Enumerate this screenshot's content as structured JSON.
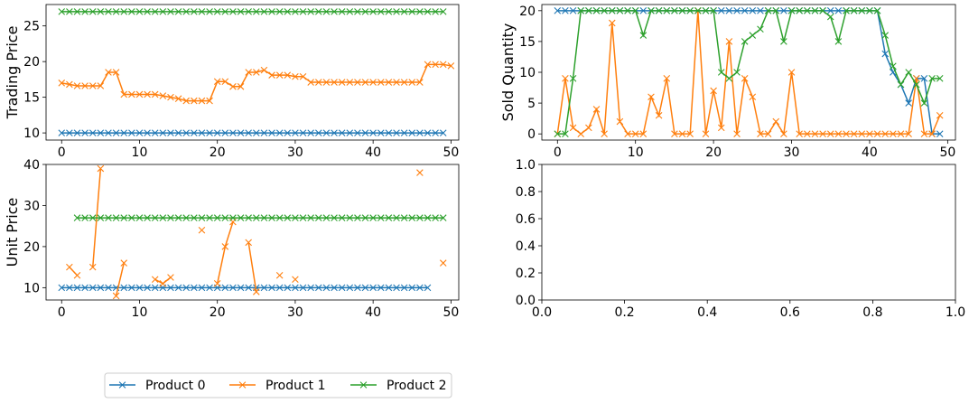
{
  "colors": {
    "Product 0": "#1f77b4",
    "Product 1": "#ff7f0e",
    "Product 2": "#2ca02c"
  },
  "legend": {
    "placement": "bottom-left",
    "entries": [
      "Product 0",
      "Product 1",
      "Product 2"
    ]
  },
  "chart_data": [
    {
      "id": "trading",
      "type": "line",
      "marker": "x",
      "ylabel": "Trading Price",
      "xlim": [
        -2,
        51
      ],
      "ylim": [
        9,
        28
      ],
      "xticks": [
        0,
        10,
        20,
        30,
        40,
        50
      ],
      "yticks": [
        10,
        15,
        20,
        25
      ],
      "series": [
        {
          "name": "Product 0",
          "x_start": 0,
          "values": [
            10,
            10,
            10,
            10,
            10,
            10,
            10,
            10,
            10,
            10,
            10,
            10,
            10,
            10,
            10,
            10,
            10,
            10,
            10,
            10,
            10,
            10,
            10,
            10,
            10,
            10,
            10,
            10,
            10,
            10,
            10,
            10,
            10,
            10,
            10,
            10,
            10,
            10,
            10,
            10,
            10,
            10,
            10,
            10,
            10,
            10,
            10,
            10,
            10,
            10
          ]
        },
        {
          "name": "Product 1",
          "x_start": 0,
          "values": [
            17,
            16.8,
            16.6,
            16.6,
            16.6,
            16.6,
            18.5,
            18.5,
            15.4,
            15.4,
            15.4,
            15.4,
            15.4,
            15.2,
            15,
            14.8,
            14.5,
            14.5,
            14.5,
            14.5,
            17.2,
            17.2,
            16.5,
            16.5,
            18.5,
            18.5,
            18.8,
            18.1,
            18.1,
            18.1,
            17.9,
            17.9,
            17.1,
            17.1,
            17.1,
            17.1,
            17.1,
            17.1,
            17.1,
            17.1,
            17.1,
            17.1,
            17.1,
            17.1,
            17.1,
            17.1,
            17.1,
            19.6,
            19.6,
            19.6,
            19.4
          ]
        },
        {
          "name": "Product 2",
          "x_start": 0,
          "values": [
            27,
            27,
            27,
            27,
            27,
            27,
            27,
            27,
            27,
            27,
            27,
            27,
            27,
            27,
            27,
            27,
            27,
            27,
            27,
            27,
            27,
            27,
            27,
            27,
            27,
            27,
            27,
            27,
            27,
            27,
            27,
            27,
            27,
            27,
            27,
            27,
            27,
            27,
            27,
            27,
            27,
            27,
            27,
            27,
            27,
            27,
            27,
            27,
            27,
            27
          ]
        }
      ]
    },
    {
      "id": "sold",
      "type": "line",
      "marker": "x",
      "ylabel": "Sold Quantity",
      "xlim": [
        -2,
        51
      ],
      "ylim": [
        -1,
        21
      ],
      "xticks": [
        0,
        10,
        20,
        30,
        40,
        50
      ],
      "yticks": [
        0,
        5,
        10,
        15,
        20
      ],
      "series": [
        {
          "name": "Product 0",
          "x_start": 0,
          "values": [
            20,
            20,
            20,
            20,
            20,
            20,
            20,
            20,
            20,
            20,
            20,
            20,
            20,
            20,
            20,
            20,
            20,
            20,
            20,
            20,
            20,
            20,
            20,
            20,
            20,
            20,
            20,
            20,
            20,
            20,
            20,
            20,
            20,
            20,
            20,
            20,
            20,
            20,
            20,
            20,
            20,
            20,
            13,
            10,
            8,
            5,
            9,
            9,
            0,
            0
          ]
        },
        {
          "name": "Product 1",
          "x_start": 0,
          "values": [
            0,
            9,
            1,
            0,
            1,
            4,
            0,
            18,
            2,
            0,
            0,
            0,
            6,
            3,
            9,
            0,
            0,
            0,
            20,
            0,
            7,
            1,
            15,
            0,
            9,
            6,
            0,
            0,
            2,
            0,
            10,
            0,
            0,
            0,
            0,
            0,
            0,
            0,
            0,
            0,
            0,
            0,
            0,
            0,
            0,
            0,
            9,
            0,
            0,
            3
          ]
        },
        {
          "name": "Product 2",
          "x_start": 0,
          "values": [
            0,
            0,
            9,
            20,
            20,
            20,
            20,
            20,
            20,
            20,
            20,
            16,
            20,
            20,
            20,
            20,
            20,
            20,
            20,
            20,
            20,
            10,
            9,
            10,
            15,
            16,
            17,
            20,
            20,
            15,
            20,
            20,
            20,
            20,
            20,
            19,
            15,
            20,
            20,
            20,
            20,
            20,
            16,
            11,
            8,
            10,
            8,
            5,
            9,
            9
          ]
        }
      ]
    },
    {
      "id": "unit",
      "type": "line",
      "marker": "x",
      "ylabel": "Unit Price",
      "xlim": [
        -2,
        51
      ],
      "ylim": [
        7,
        40
      ],
      "xticks": [
        0,
        10,
        20,
        30,
        40,
        50
      ],
      "yticks": [
        10,
        20,
        30,
        40
      ],
      "series": [
        {
          "name": "Product 0",
          "x_start": 0,
          "values": [
            10,
            10,
            10,
            10,
            10,
            10,
            10,
            10,
            10,
            10,
            10,
            10,
            10,
            10,
            10,
            10,
            10,
            10,
            10,
            10,
            10,
            10,
            10,
            10,
            10,
            10,
            10,
            10,
            10,
            10,
            10,
            10,
            10,
            10,
            10,
            10,
            10,
            10,
            10,
            10,
            10,
            10,
            10,
            10,
            10,
            10,
            10,
            10
          ]
        },
        {
          "name": "Product 1",
          "x_start": 0,
          "values": [
            null,
            15,
            13,
            null,
            15,
            39,
            null,
            8,
            16,
            null,
            null,
            null,
            12,
            11,
            12.5,
            null,
            null,
            null,
            24,
            null,
            11,
            20,
            26,
            null,
            21,
            9,
            null,
            null,
            13,
            null,
            12,
            null,
            null,
            null,
            null,
            null,
            null,
            null,
            null,
            null,
            null,
            null,
            null,
            null,
            null,
            null,
            38,
            null,
            null,
            16
          ]
        },
        {
          "name": "Product 2",
          "x_start": 2,
          "values": [
            27,
            27,
            27,
            27,
            27,
            27,
            27,
            27,
            27,
            27,
            27,
            27,
            27,
            27,
            27,
            27,
            27,
            27,
            27,
            27,
            27,
            27,
            27,
            27,
            27,
            27,
            27,
            27,
            27,
            27,
            27,
            27,
            27,
            27,
            27,
            27,
            27,
            27,
            27,
            27,
            27,
            27,
            27,
            27,
            27,
            27,
            27,
            27
          ]
        }
      ]
    },
    {
      "id": "empty",
      "type": "line",
      "xlim": [
        0,
        1
      ],
      "ylim": [
        0,
        1
      ],
      "xticks": [
        0,
        0.2,
        0.4,
        0.6,
        0.8,
        1.0
      ],
      "yticks": [
        0,
        0.2,
        0.4,
        0.6,
        0.8,
        1.0
      ],
      "tick_format": "1dp",
      "series": []
    }
  ]
}
